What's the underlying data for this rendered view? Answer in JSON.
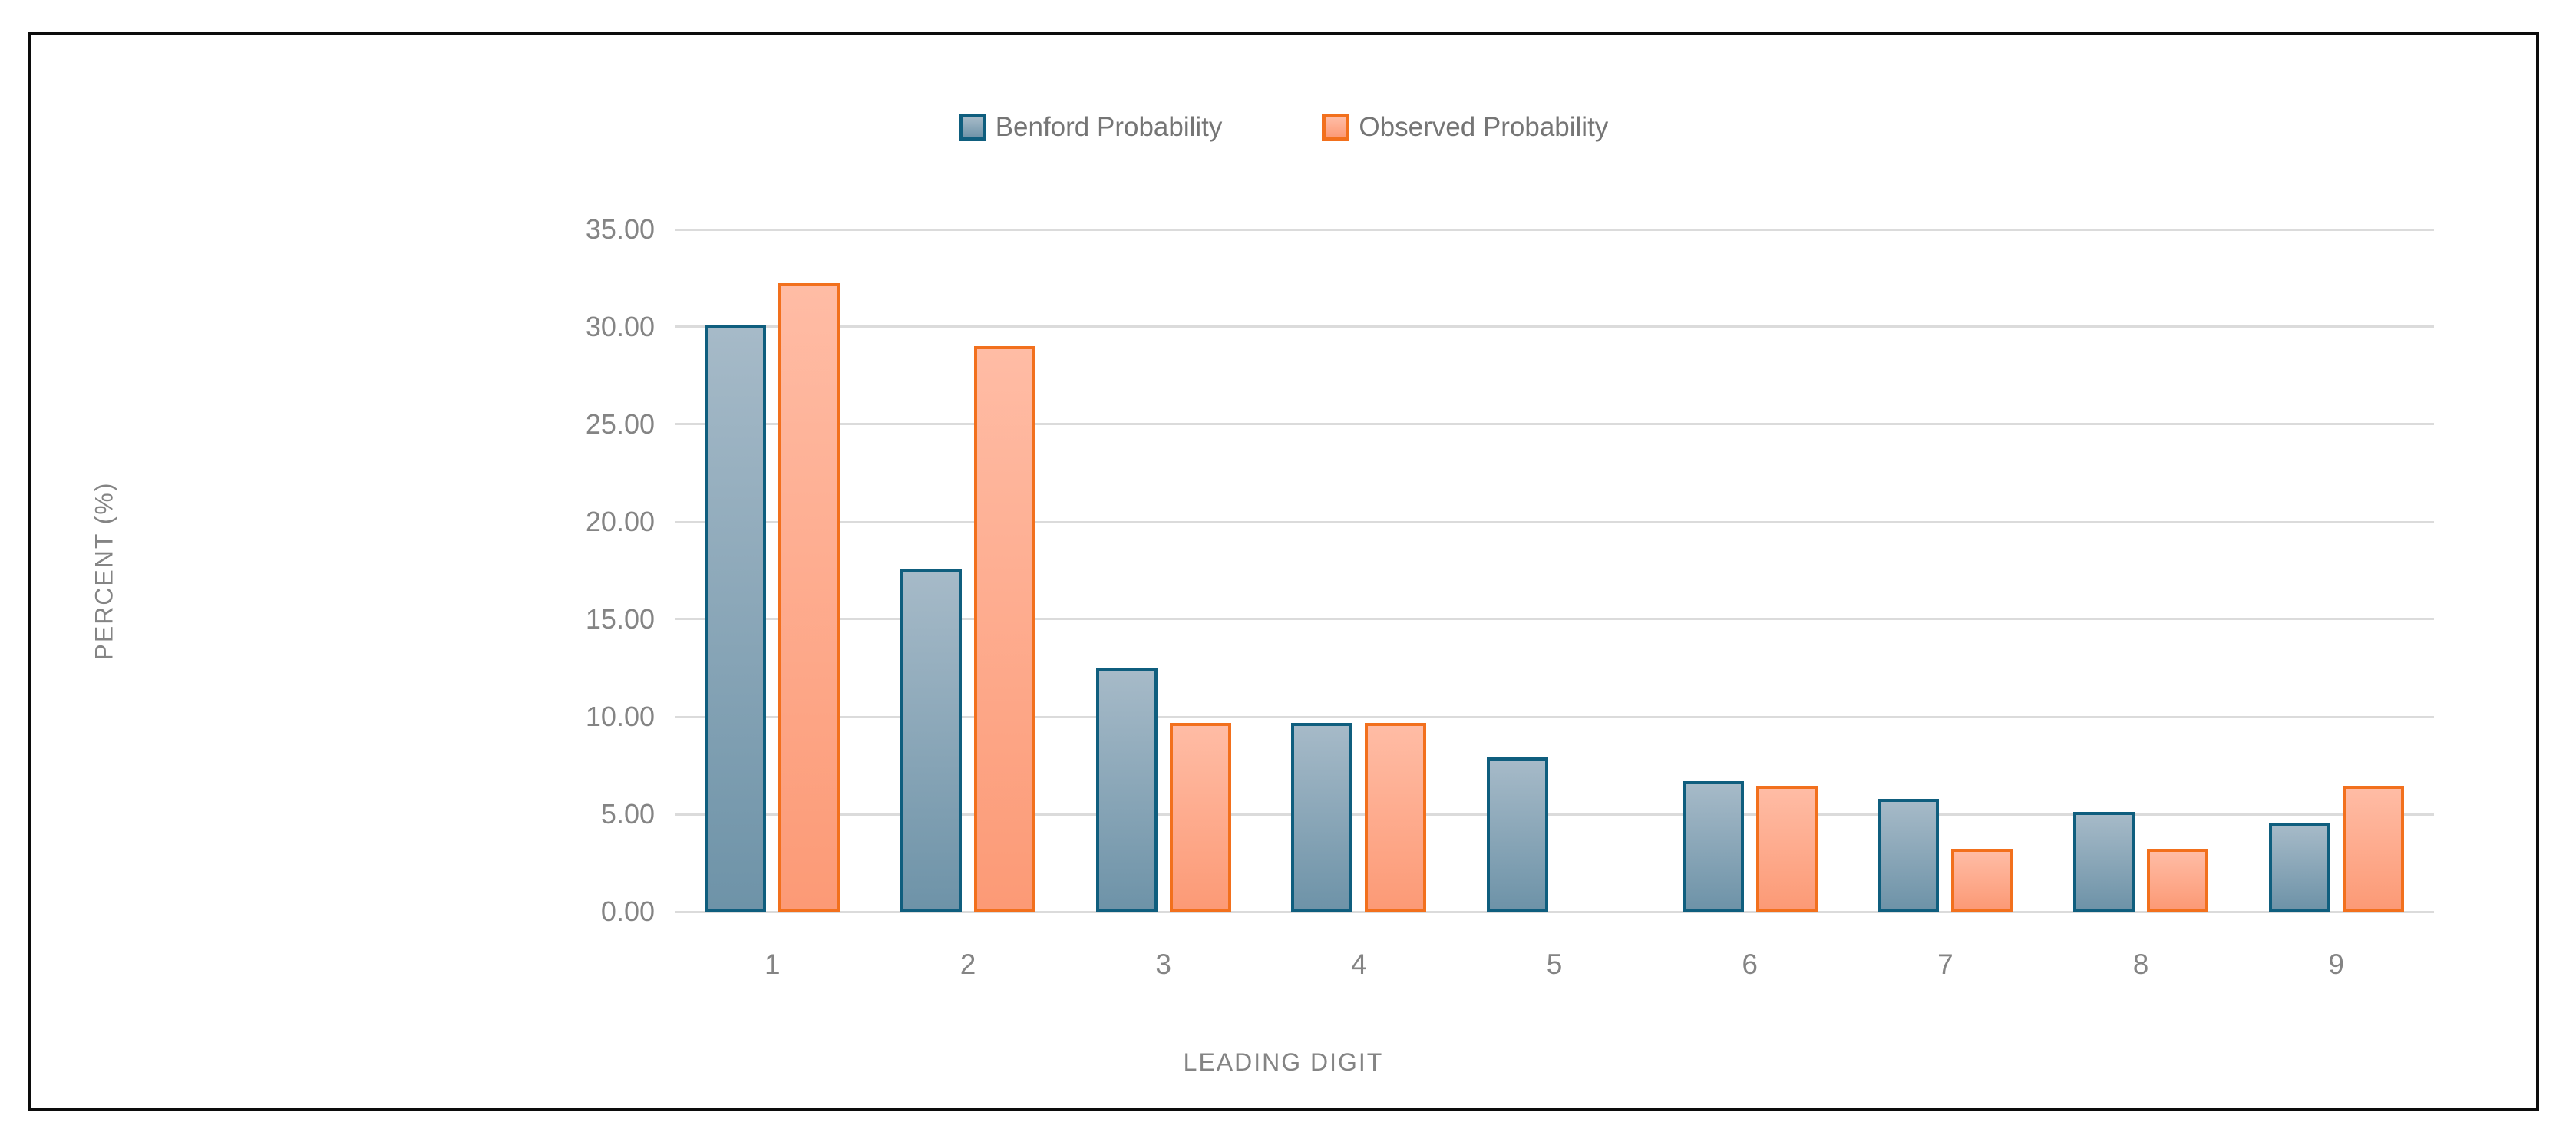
{
  "chart_data": {
    "type": "bar",
    "title": "",
    "categories": [
      "1",
      "2",
      "3",
      "4",
      "5",
      "6",
      "7",
      "8",
      "9"
    ],
    "series": [
      {
        "name": "Benford Probability",
        "values": [
          30.1,
          17.61,
          12.49,
          9.69,
          7.92,
          6.69,
          5.8,
          5.12,
          4.58
        ],
        "fill_top": "#a6bac8",
        "fill_bottom": "#6e93a8",
        "border": "#0f5e7e"
      },
      {
        "name": "Observed Probability",
        "values": [
          32.26,
          29.03,
          9.68,
          9.68,
          0.0,
          6.45,
          3.23,
          3.23,
          6.45
        ],
        "fill_top": "#ffbca5",
        "fill_bottom": "#fc9a76",
        "border": "#f2701d"
      }
    ],
    "xlabel": "LEADING DIGIT",
    "ylabel": "PERCENT (%)",
    "ylim": [
      0,
      35
    ],
    "ytick_step": 5,
    "yticks": [
      "35.00",
      "30.00",
      "25.00",
      "20.00",
      "15.00",
      "10.00",
      "5.00",
      "0.00"
    ],
    "grid": "horizontal",
    "legend_position": "top-center"
  },
  "colors": {
    "benford_fill": "#8fa9bc",
    "benford_border": "#0f5e7e",
    "observed_fill": "#ffaf99",
    "observed_border": "#f2701d",
    "gridline": "#dbdbdb",
    "axis_text": "#848484",
    "legend_text": "#757575",
    "frame_border": "#0c0c0c"
  }
}
